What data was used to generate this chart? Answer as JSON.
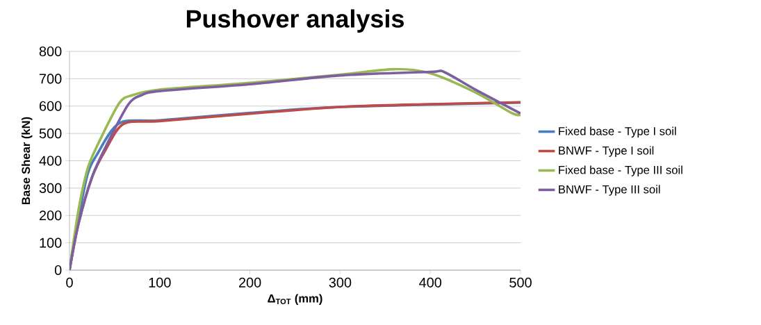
{
  "chart_data": {
    "type": "line",
    "title": "Pushover analysis",
    "xlabel": "Δ$_{TOT}$ (mm)",
    "ylabel": "Base Shear (kN)",
    "xlim": [
      0,
      500
    ],
    "ylim": [
      0,
      800
    ],
    "xticks": [
      0,
      100,
      200,
      300,
      400,
      500
    ],
    "yticks": [
      0,
      100,
      200,
      300,
      400,
      500,
      600,
      700,
      800
    ],
    "grid": "y",
    "legend": "right",
    "marker": "none",
    "line_style": "solid",
    "series": [
      {
        "name": "Fixed base - Type I soil",
        "color": "#4a7ebb",
        "x": [
          0,
          10,
          20,
          30,
          55,
          100,
          200,
          300,
          400,
          500
        ],
        "values": [
          0,
          190,
          350,
          420,
          537,
          548,
          575,
          597,
          null,
          613
        ]
      },
      {
        "name": "BNWF - Type I soil",
        "color": "#be4b48",
        "x": [
          0,
          10,
          25,
          40,
          60,
          100,
          200,
          300,
          400,
          500
        ],
        "values": [
          0,
          170,
          340,
          440,
          535,
          545,
          572,
          597,
          607,
          614
        ]
      },
      {
        "name": "Fixed base - Type III soil",
        "color": "#98b954",
        "x": [
          0,
          10,
          20,
          30,
          55,
          70,
          100,
          200,
          300,
          360,
          400,
          450,
          490,
          500
        ],
        "values": [
          0,
          220,
          370,
          450,
          610,
          640,
          660,
          685,
          715,
          735,
          720,
          650,
          575,
          568
        ]
      },
      {
        "name": "BNWF - Type III soil",
        "color": "#7d5fa0",
        "x": [
          0,
          10,
          25,
          40,
          65,
          80,
          100,
          200,
          300,
          400,
          415,
          450,
          500
        ],
        "values": [
          0,
          170,
          340,
          450,
          605,
          640,
          655,
          680,
          712,
          725,
          725,
          660,
          573
        ]
      }
    ]
  }
}
